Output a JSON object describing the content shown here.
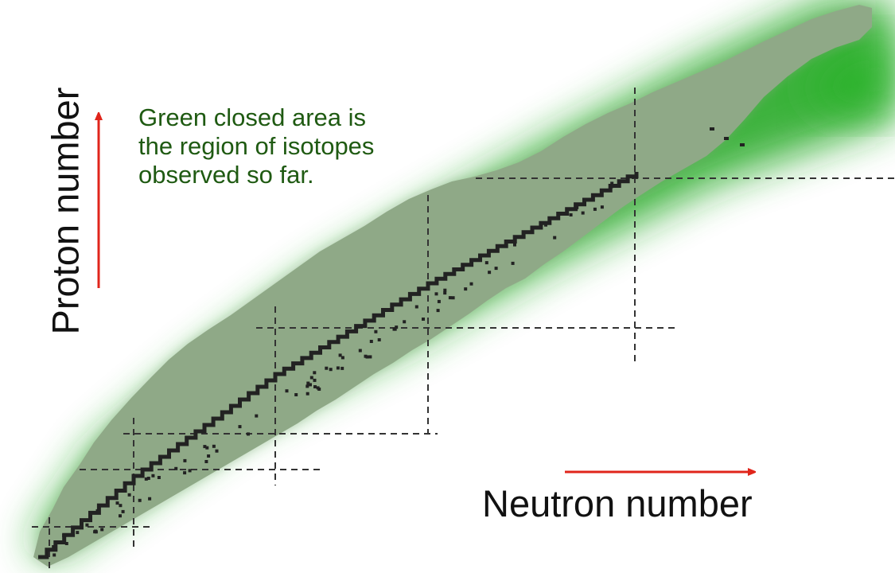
{
  "note": "Green closed area is the region of isotopes observed so far.",
  "x_axis_label": "Neutron number",
  "y_axis_label": "Proton number",
  "colors": {
    "observed_region": "#8fa987",
    "predicted_region": "#1aa51a",
    "stable_isotopes": "#222222",
    "axis_arrows": "#e0251b",
    "magic_number_lines": "#333333",
    "note_text": "#1f5a12"
  }
}
